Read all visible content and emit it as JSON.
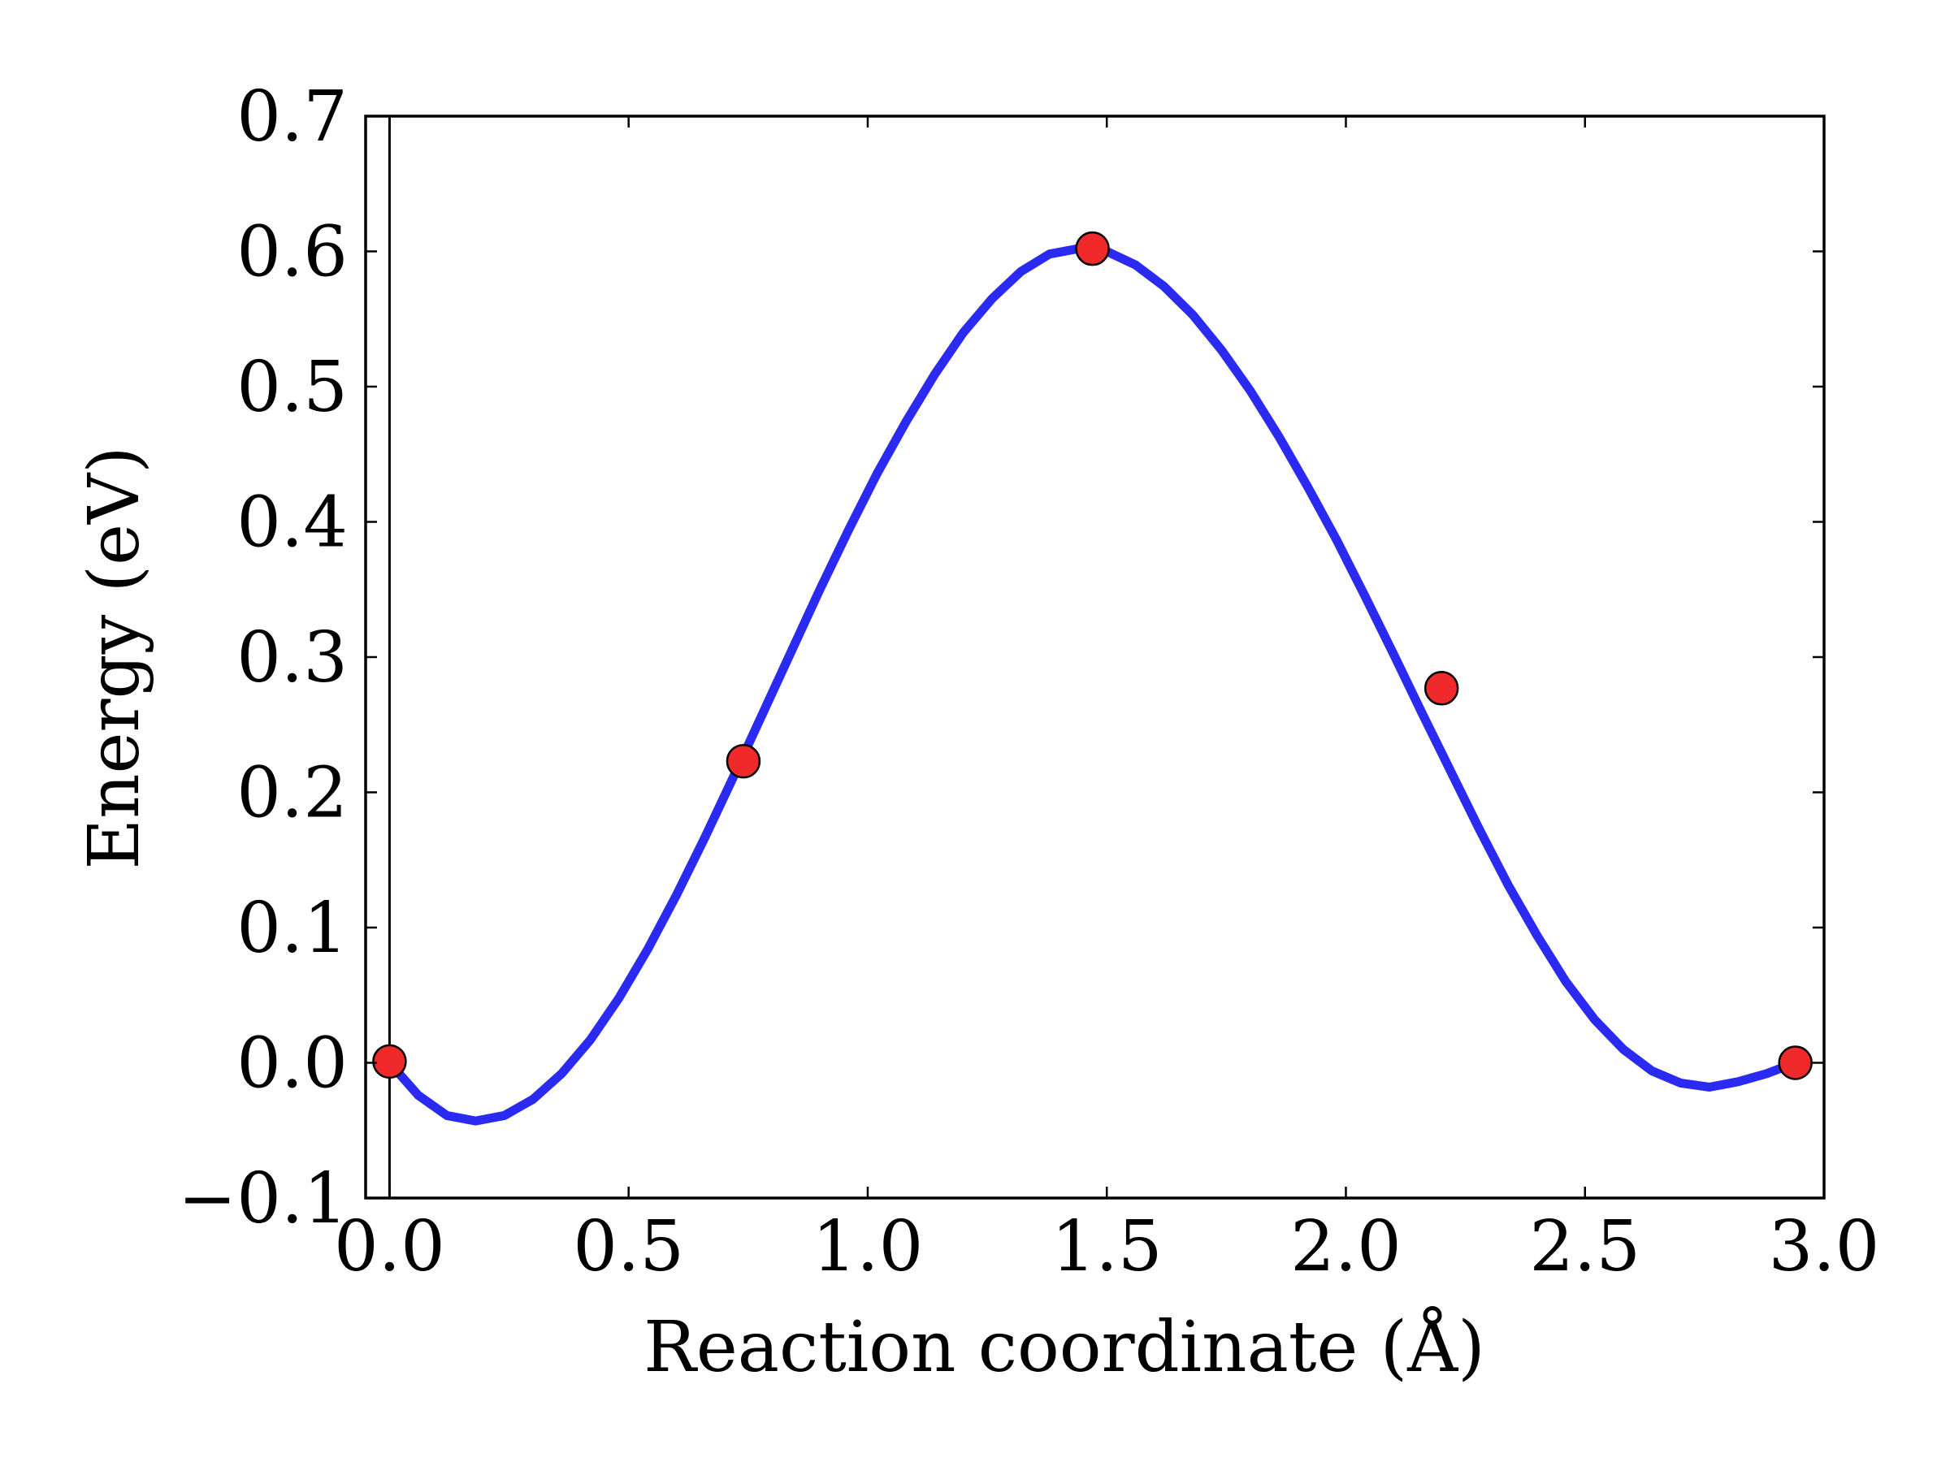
{
  "chart_data": {
    "type": "line",
    "title": "",
    "xlabel": "Reaction coordinate (Å)",
    "ylabel": "Energy (eV)",
    "xlim": [
      -0.05,
      3.0
    ],
    "ylim": [
      -0.1,
      0.7
    ],
    "xticks": [
      0.0,
      0.5,
      1.0,
      1.5,
      2.0,
      2.5,
      3.0
    ],
    "xtick_labels": [
      "0.0",
      "0.5",
      "1.0",
      "1.5",
      "2.0",
      "2.5",
      "3.0"
    ],
    "yticks": [
      -0.1,
      0.0,
      0.1,
      0.2,
      0.3,
      0.4,
      0.5,
      0.6,
      0.7
    ],
    "ytick_labels": [
      "−0.1",
      "0.0",
      "0.1",
      "0.2",
      "0.3",
      "0.4",
      "0.5",
      "0.6",
      "0.7"
    ],
    "grid": false,
    "vline_x": 0.0,
    "series": [
      {
        "kind": "line",
        "color": "#2a2af2",
        "x": [
          0.0,
          0.06,
          0.12,
          0.18,
          0.24,
          0.3,
          0.36,
          0.42,
          0.48,
          0.54,
          0.6,
          0.66,
          0.72,
          0.78,
          0.84,
          0.9,
          0.96,
          1.02,
          1.08,
          1.14,
          1.2,
          1.26,
          1.32,
          1.38,
          1.44,
          1.5,
          1.56,
          1.62,
          1.68,
          1.74,
          1.8,
          1.86,
          1.92,
          1.98,
          2.04,
          2.1,
          2.16,
          2.22,
          2.28,
          2.34,
          2.4,
          2.46,
          2.52,
          2.58,
          2.64,
          2.7,
          2.76,
          2.82,
          2.88,
          2.94
        ],
        "y": [
          0.0,
          -0.024,
          -0.039,
          -0.043,
          -0.039,
          -0.027,
          -0.008,
          0.017,
          0.048,
          0.084,
          0.124,
          0.167,
          0.212,
          0.258,
          0.304,
          0.35,
          0.394,
          0.436,
          0.474,
          0.509,
          0.54,
          0.565,
          0.585,
          0.598,
          0.602,
          0.6,
          0.59,
          0.574,
          0.553,
          0.527,
          0.497,
          0.463,
          0.426,
          0.387,
          0.345,
          0.302,
          0.258,
          0.215,
          0.172,
          0.131,
          0.094,
          0.06,
          0.032,
          0.01,
          -0.006,
          -0.015,
          -0.018,
          -0.014,
          -0.008,
          0.0
        ]
      },
      {
        "kind": "points",
        "color": "#f02a2a",
        "x": [
          0.0,
          0.74,
          1.47,
          2.2,
          2.94
        ],
        "y": [
          0.001,
          0.223,
          0.602,
          0.277,
          0.0
        ]
      }
    ]
  }
}
